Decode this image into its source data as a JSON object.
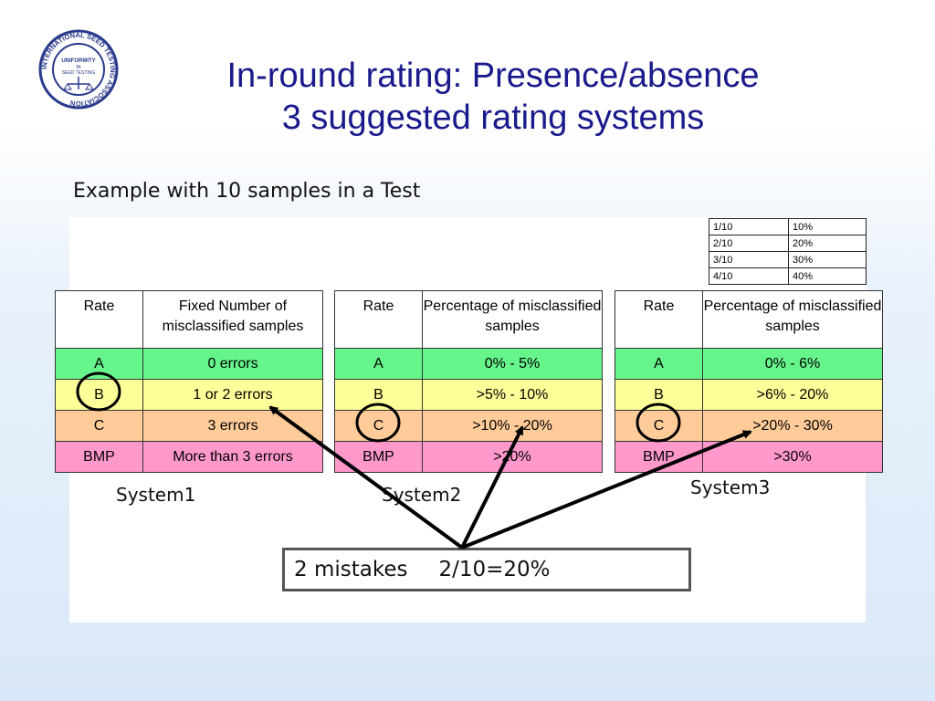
{
  "title_line1": "In-round rating: Presence/absence",
  "title_line2": "3 suggested rating systems",
  "logo": {
    "ring_text": "INTERNATIONAL SEED TESTING ASSOCIATION",
    "center_text": "UNIFORMITY IN SEED TESTING"
  },
  "subtitle": "Example with 10 samples in a Test",
  "mini_table": [
    [
      "1/10",
      "10%"
    ],
    [
      "2/10",
      "20%"
    ],
    [
      "3/10",
      "30%"
    ],
    [
      "4/10",
      "40%"
    ]
  ],
  "systems": [
    {
      "label": "System1",
      "header_rate": "Rate",
      "header_desc": "Fixed Number of misclassified samples",
      "rows": [
        {
          "rate": "A",
          "desc": "0 errors"
        },
        {
          "rate": "B",
          "desc": "1 or 2 errors"
        },
        {
          "rate": "C",
          "desc": "3 errors"
        },
        {
          "rate": "BMP",
          "desc": "More than 3 errors"
        }
      ]
    },
    {
      "label": "System2",
      "header_rate": "Rate",
      "header_desc": "Percentage of misclassified samples",
      "rows": [
        {
          "rate": "A",
          "desc": "0% - 5%"
        },
        {
          "rate": "B",
          "desc": ">5% - 10%"
        },
        {
          "rate": "C",
          "desc": ">10% - 20%"
        },
        {
          "rate": "BMP",
          "desc": ">20%"
        }
      ]
    },
    {
      "label": "System3",
      "header_rate": "Rate",
      "header_desc": "Percentage of misclassified samples",
      "rows": [
        {
          "rate": "A",
          "desc": "0% - 6%"
        },
        {
          "rate": "B",
          "desc": ">6% - 20%"
        },
        {
          "rate": "C",
          "desc": ">20% - 30%"
        },
        {
          "rate": "BMP",
          "desc": ">30%"
        }
      ]
    }
  ],
  "result": {
    "mistakes": "2 mistakes",
    "calc": "2/10=20%"
  },
  "colors": {
    "title": "#1a1a8c",
    "A": "#66f58a",
    "B": "#ffff99",
    "C": "#ffcc99",
    "BMP": "#ff99cc"
  }
}
